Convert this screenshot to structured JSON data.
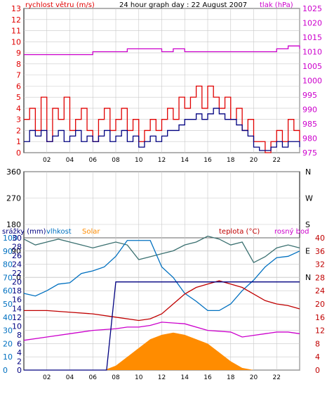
{
  "colors": {
    "wind": "#e00000",
    "gust_dark": "#000080",
    "pressure": "#cc00cc",
    "direction": "#3a7070",
    "humidity": "#0070c0",
    "solar": "#ff8c00",
    "temperature": "#c00000",
    "dewpoint": "#cc00cc",
    "rain": "#000080",
    "grid": "#c8c8c8"
  },
  "chart_data": [
    {
      "type": "line",
      "title": "24 hour graph day : 22 August 2007",
      "ylabel": "rychlost větru (m/s)",
      "ylabel_right": "tlak (hPa)",
      "ylim": [
        0,
        13
      ],
      "ylim_right": [
        975,
        1025
      ],
      "yticks": [
        "0",
        "1",
        "2",
        "3",
        "4",
        "5",
        "6",
        "7",
        "8",
        "9",
        "10",
        "11",
        "12",
        "13"
      ],
      "yticks_right": [
        "975",
        "980",
        "985",
        "990",
        "995",
        "1000",
        "1005",
        "1010",
        "1015",
        "1020",
        "1025"
      ],
      "xticks": [
        "02",
        "04",
        "06",
        "08",
        "10",
        "12",
        "14",
        "16",
        "18",
        "20",
        "22",
        ""
      ],
      "xlim": [
        0,
        24
      ],
      "series": [
        {
          "name": "gusts",
          "x": [
            0,
            0.5,
            1,
            1.5,
            2,
            2.5,
            3,
            3.5,
            4,
            4.5,
            5,
            5.5,
            6,
            6.5,
            7,
            7.5,
            8,
            8.5,
            9,
            9.5,
            10,
            10.5,
            11,
            11.5,
            12,
            12.5,
            13,
            13.5,
            14,
            14.5,
            15,
            15.5,
            16,
            16.5,
            17,
            17.5,
            18,
            18.5,
            19,
            19.5,
            20,
            20.5,
            21,
            21.5,
            22,
            22.5,
            23,
            23.5,
            24
          ],
          "values": [
            3,
            4,
            2,
            5,
            1,
            4,
            3,
            5,
            2,
            3,
            4,
            2,
            1,
            3,
            4,
            2,
            3,
            4,
            2,
            3,
            1,
            2,
            3,
            2,
            3,
            4,
            3,
            5,
            4,
            5,
            6,
            4,
            6,
            5,
            4,
            5,
            3,
            4,
            2,
            3,
            1,
            1,
            0,
            1,
            2,
            1,
            3,
            2,
            1
          ]
        },
        {
          "name": "wind",
          "x": [
            0,
            0.5,
            1,
            1.5,
            2,
            2.5,
            3,
            3.5,
            4,
            4.5,
            5,
            5.5,
            6,
            6.5,
            7,
            7.5,
            8,
            8.5,
            9,
            9.5,
            10,
            10.5,
            11,
            11.5,
            12,
            12.5,
            13,
            13.5,
            14,
            14.5,
            15,
            15.5,
            16,
            16.5,
            17,
            17.5,
            18,
            18.5,
            19,
            19.5,
            20,
            20.5,
            21,
            21.5,
            22,
            22.5,
            23,
            23.5,
            24
          ],
          "values": [
            1,
            2,
            1.5,
            2,
            1,
            1.5,
            2,
            1,
            1.5,
            2,
            1,
            1.5,
            1,
            1.5,
            2,
            1,
            1.5,
            2,
            1,
            1.5,
            0.5,
            1,
            1.5,
            1,
            1.5,
            2,
            2,
            2.5,
            3,
            3,
            3.5,
            3,
            3.5,
            4,
            3.5,
            3,
            3,
            2.5,
            2,
            1.5,
            0.5,
            0.2,
            0.2,
            0.5,
            1,
            0.5,
            1,
            1,
            0.5
          ]
        },
        {
          "name": "pressure",
          "x": [
            0,
            4,
            6,
            7.5,
            9,
            10,
            12,
            13,
            14,
            16,
            18,
            20,
            22,
            23,
            24
          ],
          "values": [
            1009,
            1009,
            1010,
            1010,
            1011,
            1011,
            1010,
            1011,
            1010,
            1010,
            1010,
            1010,
            1011,
            1012,
            1011
          ]
        }
      ]
    },
    {
      "type": "scatter",
      "ylabel_right": "N W S E N",
      "ylim": [
        0,
        360
      ],
      "yticks": [
        "0",
        "90",
        "180",
        "270",
        "360"
      ],
      "xlim": [
        0,
        24
      ],
      "series": [
        {
          "name": "direction",
          "x": [
            0,
            1,
            2,
            3,
            4,
            5,
            6,
            7,
            8,
            9,
            10,
            11,
            12,
            13,
            14,
            15,
            16,
            17,
            18,
            19,
            20,
            21,
            22,
            23,
            24
          ],
          "values": [
            130,
            110,
            120,
            130,
            120,
            110,
            100,
            110,
            120,
            110,
            60,
            70,
            80,
            90,
            110,
            120,
            140,
            130,
            110,
            120,
            50,
            70,
            100,
            110,
            100
          ]
        }
      ]
    },
    {
      "type": "line",
      "legend": [
        "srážky (mm)",
        "vlhkost",
        "Solar",
        "teplota (°C)",
        "rosný bod"
      ],
      "yticks_left_a": [
        "0",
        "10",
        "20",
        "30",
        "40",
        "50",
        "60",
        "70",
        "80",
        "90",
        "100"
      ],
      "yticks_left_b": [
        "0",
        "2",
        "4",
        "6",
        "8",
        "10",
        "12",
        "14",
        "16",
        "18",
        "20",
        "22",
        "24",
        "26",
        "28",
        "30"
      ],
      "yticks_right": [
        "0",
        "4",
        "8",
        "12",
        "16",
        "20",
        "24",
        "28",
        "32",
        "36",
        "40"
      ],
      "xticks": [
        "02",
        "04",
        "06",
        "08",
        "10",
        "12",
        "14",
        "16",
        "18",
        "20",
        "22",
        ""
      ],
      "xlim": [
        0,
        24
      ],
      "series": [
        {
          "name": "vlhkost",
          "x": [
            0,
            1,
            2,
            3,
            4,
            5,
            6,
            7,
            8,
            9,
            10,
            11,
            12,
            13,
            14,
            15,
            16,
            17,
            18,
            19,
            20,
            21,
            22,
            23,
            24
          ],
          "values": [
            58,
            56,
            60,
            65,
            66,
            73,
            75,
            78,
            86,
            98,
            98,
            98,
            78,
            70,
            58,
            52,
            45,
            45,
            50,
            60,
            68,
            78,
            85,
            86,
            90
          ]
        },
        {
          "name": "teplota",
          "x": [
            0,
            2,
            4,
            6,
            8,
            10,
            11,
            12,
            13,
            14,
            15,
            16,
            17,
            18,
            19,
            20,
            21,
            22,
            23,
            24
          ],
          "values": [
            18,
            18,
            17.5,
            17,
            16,
            15,
            15.5,
            17,
            20,
            23,
            25,
            26,
            27,
            26,
            25,
            23,
            21,
            20,
            19.5,
            18.5
          ]
        },
        {
          "name": "rosný bod",
          "x": [
            0,
            2,
            4,
            6,
            8,
            9,
            10,
            11,
            12,
            14,
            16,
            18,
            19,
            20,
            21,
            22,
            23,
            24
          ],
          "values": [
            9,
            10,
            11,
            12,
            12.5,
            13,
            13,
            13.5,
            14.5,
            14,
            12,
            11.5,
            10,
            10.5,
            11,
            11.5,
            11.5,
            11
          ]
        },
        {
          "name": "Solar",
          "x": [
            0,
            6,
            7,
            7.5,
            8,
            9,
            10,
            11,
            12,
            13,
            14,
            15,
            16,
            17,
            18,
            19,
            20,
            24
          ],
          "values": [
            0,
            0,
            0,
            0.5,
            1,
            3,
            5,
            7,
            8,
            8.5,
            8,
            7,
            6,
            4,
            2,
            0.5,
            0,
            0
          ]
        },
        {
          "name": "srážky",
          "x": [
            0,
            7.2,
            7.6,
            8,
            10,
            12,
            14,
            16,
            18,
            20,
            22,
            24
          ],
          "values": [
            0,
            0,
            1,
            2,
            2,
            2,
            2,
            2,
            2,
            2,
            2,
            2
          ]
        }
      ]
    }
  ]
}
